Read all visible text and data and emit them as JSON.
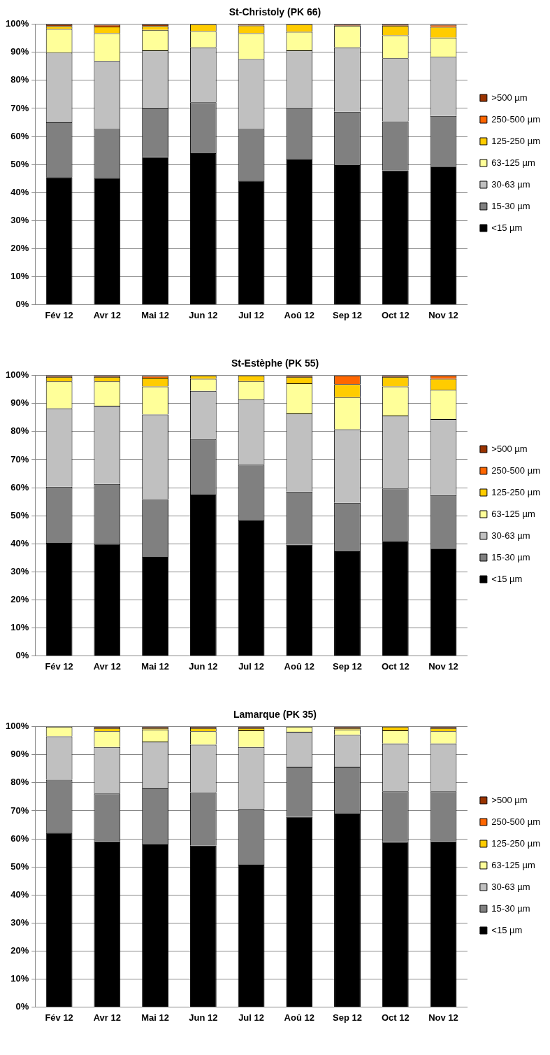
{
  "chart_data": [
    {
      "type": "bar",
      "title": "St-Christoly (PK 66)",
      "stacked": true,
      "grid": "y",
      "legend": "right",
      "categories": [
        "Fév 12",
        "Avr 12",
        "Mai 12",
        "Jun 12",
        "Jul 12",
        "Aoû 12",
        "Sep 12",
        "Oct 12",
        "Nov 12"
      ],
      "ylim": [
        0,
        100
      ],
      "yticks": [
        {
          "value": 0,
          "label": "0%"
        },
        {
          "value": 10,
          "label": "10%"
        },
        {
          "value": 20,
          "label": "20%"
        },
        {
          "value": 30,
          "label": "30%"
        },
        {
          "value": 40,
          "label": "40%"
        },
        {
          "value": 50,
          "label": "50%"
        },
        {
          "value": 60,
          "label": "60%"
        },
        {
          "value": 70,
          "label": "70%"
        },
        {
          "value": 80,
          "label": "80%"
        },
        {
          "value": 90,
          "label": "90%"
        },
        {
          "value": 100,
          "label": "100%"
        }
      ],
      "series": [
        {
          "name": "<15 µm",
          "color": "#000000",
          "values": [
            45.5,
            45.2,
            52.6,
            54.0,
            44.2,
            51.8,
            49.8,
            47.9,
            49.4
          ]
        },
        {
          "name": "15-30 µm",
          "color": "#808080",
          "values": [
            19.5,
            17.5,
            17.4,
            18.2,
            18.5,
            18.5,
            19.0,
            17.5,
            17.9
          ]
        },
        {
          "name": "30-63 µm",
          "color": "#c0c0c0",
          "values": [
            24.9,
            24.2,
            20.7,
            19.6,
            24.9,
            20.4,
            23.0,
            22.5,
            21.1
          ]
        },
        {
          "name": "63-125 µm",
          "color": "#ffff99",
          "values": [
            8.4,
            9.9,
            7.3,
            5.8,
            9.2,
            6.6,
            7.7,
            8.2,
            6.9
          ]
        },
        {
          "name": "125-250 µm",
          "color": "#ffcc00",
          "values": [
            1.1,
            2.4,
            1.4,
            2.4,
            2.8,
            2.7,
            0,
            3.4,
            3.8
          ]
        },
        {
          "name": "250-500 µm",
          "color": "#ff6600",
          "values": [
            0,
            0.6,
            0,
            0,
            0,
            0,
            0,
            0,
            0.7
          ]
        },
        {
          "name": ">500 µm",
          "color": "#993300",
          "values": [
            0.6,
            0.2,
            0.6,
            0,
            0.4,
            0,
            0.5,
            0.5,
            0.2
          ]
        }
      ]
    },
    {
      "type": "bar",
      "title": "St-Estèphe (PK 55)",
      "stacked": true,
      "grid": "y",
      "legend": "right",
      "categories": [
        "Fév 12",
        "Avr 12",
        "Mai 12",
        "Jun 12",
        "Jul 12",
        "Aoû 12",
        "Sep 12",
        "Oct 12",
        "Nov 12"
      ],
      "ylim": [
        0,
        100
      ],
      "yticks": [
        {
          "value": 0,
          "label": "0%"
        },
        {
          "value": 10,
          "label": "10%"
        },
        {
          "value": 20,
          "label": "20%"
        },
        {
          "value": 30,
          "label": "30%"
        },
        {
          "value": 40,
          "label": "40%"
        },
        {
          "value": 50,
          "label": "50%"
        },
        {
          "value": 60,
          "label": "60%"
        },
        {
          "value": 70,
          "label": "70%"
        },
        {
          "value": 80,
          "label": "80%"
        },
        {
          "value": 90,
          "label": "90%"
        },
        {
          "value": 100,
          "label": "100%"
        }
      ],
      "series": [
        {
          "name": "<15 µm",
          "color": "#000000",
          "values": [
            40.3,
            39.9,
            35.3,
            57.5,
            48.3,
            39.6,
            37.3,
            41.0,
            38.4
          ]
        },
        {
          "name": "15-30 µm",
          "color": "#808080",
          "values": [
            20.0,
            21.4,
            20.6,
            19.8,
            19.9,
            19.0,
            17.3,
            18.7,
            18.9
          ]
        },
        {
          "name": "30-63 µm",
          "color": "#c0c0c0",
          "values": [
            28.0,
            27.9,
            30.2,
            17.2,
            23.3,
            27.9,
            26.2,
            26.0,
            27.2
          ]
        },
        {
          "name": "63-125 µm",
          "color": "#ffff99",
          "values": [
            9.6,
            8.7,
            10.0,
            4.3,
            6.5,
            10.7,
            11.5,
            10.4,
            10.4
          ]
        },
        {
          "name": "125-250 µm",
          "color": "#ffcc00",
          "values": [
            1.6,
            1.6,
            3.1,
            1.2,
            2.0,
            2.3,
            4.6,
            3.4,
            3.9
          ]
        },
        {
          "name": "250-500 µm",
          "color": "#ff6600",
          "values": [
            0,
            0,
            0.6,
            0,
            0,
            0,
            3.1,
            0,
            1.2
          ]
        },
        {
          "name": ">500 µm",
          "color": "#993300",
          "values": [
            0.5,
            0.5,
            0.2,
            0,
            0,
            0.5,
            0,
            0.5,
            0
          ]
        }
      ]
    },
    {
      "type": "bar",
      "title": "Lamarque (PK 35)",
      "stacked": true,
      "grid": "y",
      "legend": "right",
      "categories": [
        "Fév 12",
        "Avr 12",
        "Mai 12",
        "Jun 12",
        "Jul 12",
        "Aoû 12",
        "Sep 12",
        "Oct 12",
        "Nov 12"
      ],
      "ylim": [
        0,
        100
      ],
      "yticks": [
        {
          "value": 0,
          "label": "0%"
        },
        {
          "value": 10,
          "label": "10%"
        },
        {
          "value": 20,
          "label": "20%"
        },
        {
          "value": 30,
          "label": "30%"
        },
        {
          "value": 40,
          "label": "40%"
        },
        {
          "value": 50,
          "label": "50%"
        },
        {
          "value": 60,
          "label": "60%"
        },
        {
          "value": 70,
          "label": "70%"
        },
        {
          "value": 80,
          "label": "80%"
        },
        {
          "value": 90,
          "label": "90%"
        },
        {
          "value": 100,
          "label": "100%"
        }
      ],
      "series": [
        {
          "name": "<15 µm",
          "color": "#000000",
          "values": [
            62.2,
            59.1,
            58.0,
            57.6,
            50.8,
            67.9,
            69.0,
            58.9,
            59.1
          ]
        },
        {
          "name": "15-30 µm",
          "color": "#808080",
          "values": [
            18.9,
            17.1,
            20.0,
            19.0,
            20.0,
            17.8,
            16.7,
            18.0,
            17.8
          ]
        },
        {
          "name": "30-63 µm",
          "color": "#c0c0c0",
          "values": [
            15.5,
            16.6,
            16.7,
            17.0,
            22.0,
            12.5,
            11.4,
            17.1,
            17.1
          ]
        },
        {
          "name": "63-125 µm",
          "color": "#ffff99",
          "values": [
            3.4,
            5.6,
            4.3,
            4.8,
            5.9,
            1.8,
            1.9,
            4.7,
            4.4
          ]
        },
        {
          "name": "125-250 µm",
          "color": "#ffcc00",
          "values": [
            0,
            1.1,
            0.5,
            1.1,
            0.8,
            0,
            0.5,
            1.3,
            1.1
          ]
        },
        {
          "name": "250-500 µm",
          "color": "#ff6600",
          "values": [
            0,
            0,
            0,
            0,
            0,
            0,
            0,
            0,
            0
          ]
        },
        {
          "name": ">500 µm",
          "color": "#993300",
          "values": [
            0,
            0.5,
            0.5,
            0.5,
            0.5,
            0,
            0.5,
            0,
            0.5
          ]
        }
      ]
    }
  ]
}
